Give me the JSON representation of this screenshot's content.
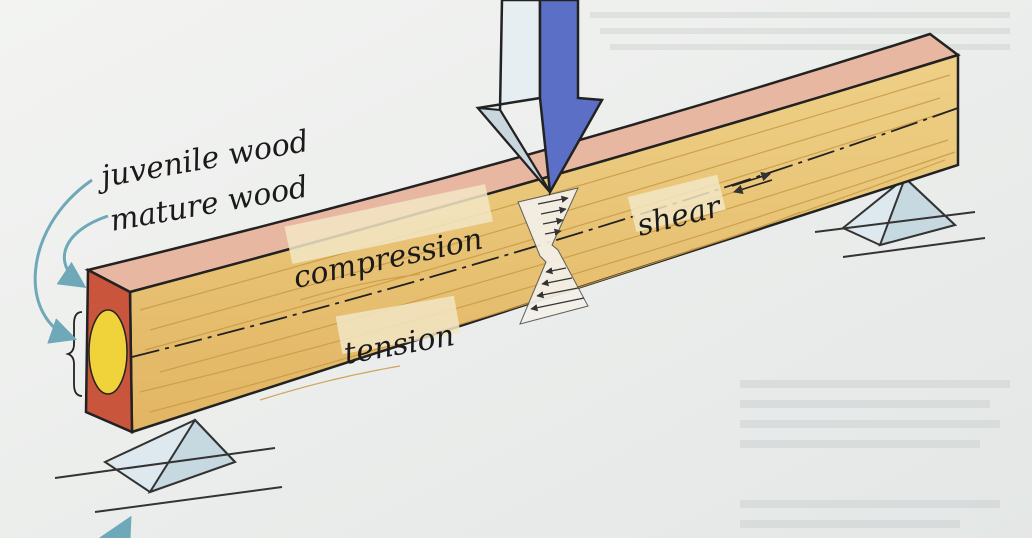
{
  "labels": {
    "juvenile_wood": "juvenile wood",
    "mature_wood": "mature wood",
    "compression": "compression",
    "tension": "tension",
    "shear": "shear"
  },
  "colors": {
    "background": "#eceeec",
    "wood_face": "#e9c477",
    "wood_grain": "#c89a45",
    "wood_top": "#e8b7a2",
    "end_outer": "#c9553c",
    "end_core": "#f0d23a",
    "load_arrow": "#5b6fc6",
    "pointer_arrow": "#6fa8b8",
    "support": "#dde9ee"
  }
}
